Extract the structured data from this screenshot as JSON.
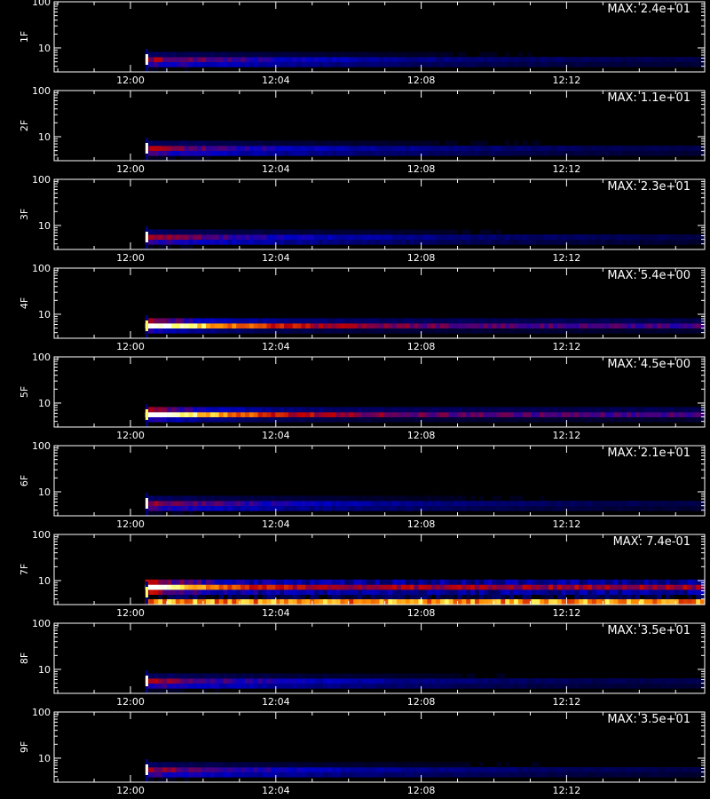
{
  "chart_data": {
    "type": "heatmap",
    "colormap": [
      "#000000",
      "#0000c8",
      "#c00000",
      "#ff8c00",
      "#ffff64",
      "#ffffff"
    ],
    "x_ticks": [
      "12:00",
      "12:04",
      "12:08",
      "12:12"
    ],
    "y_ticks": [
      "10",
      "100"
    ],
    "y_scale": "log",
    "grid": false,
    "panels": [
      {
        "label": "1F",
        "max_label": "MAX: 2.4e+01",
        "kind": "spike"
      },
      {
        "label": "2F",
        "max_label": "MAX: 1.1e+01",
        "kind": "spike"
      },
      {
        "label": "3F",
        "max_label": "MAX: 2.3e+01",
        "kind": "spike"
      },
      {
        "label": "4F",
        "max_label": "MAX: 5.4e+00",
        "kind": "broad"
      },
      {
        "label": "5F",
        "max_label": "MAX: 4.5e+00",
        "kind": "broad"
      },
      {
        "label": "6F",
        "max_label": "MAX: 2.1e+01",
        "kind": "spike"
      },
      {
        "label": "7F",
        "max_label": "MAX: 7.4e-01",
        "kind": "noisy"
      },
      {
        "label": "8F",
        "max_label": "MAX: 3.5e+01",
        "kind": "spike"
      },
      {
        "label": "9F",
        "max_label": "MAX: 3.5e+01",
        "kind": "spike"
      }
    ]
  }
}
